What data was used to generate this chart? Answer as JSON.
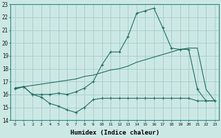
{
  "xlabel": "Humidex (Indice chaleur)",
  "xlim": [
    -0.5,
    23.5
  ],
  "ylim": [
    14,
    23
  ],
  "yticks": [
    14,
    15,
    16,
    17,
    18,
    19,
    20,
    21,
    22,
    23
  ],
  "xticks": [
    0,
    1,
    2,
    3,
    4,
    5,
    6,
    7,
    8,
    9,
    10,
    11,
    12,
    13,
    14,
    15,
    16,
    17,
    18,
    19,
    20,
    21,
    22,
    23
  ],
  "bg_color": "#cce8e5",
  "grid_color": "#aacfcc",
  "line_color": "#1e6e65",
  "line1_x": [
    0,
    1,
    2,
    3,
    4,
    5,
    6,
    7,
    8,
    9,
    10,
    11,
    12,
    13,
    14,
    15,
    16,
    17,
    18,
    19,
    20,
    21,
    22,
    23
  ],
  "line1_y": [
    16.5,
    16.6,
    16.0,
    15.8,
    15.3,
    15.1,
    14.8,
    14.6,
    15.0,
    15.6,
    15.7,
    15.7,
    15.7,
    15.7,
    15.7,
    15.7,
    15.7,
    15.7,
    15.7,
    15.7,
    15.7,
    15.5,
    15.5,
    15.5
  ],
  "line2_x": [
    0,
    1,
    2,
    3,
    4,
    5,
    6,
    7,
    8,
    9,
    10,
    11,
    12,
    13,
    14,
    15,
    16,
    17,
    18,
    19,
    20,
    21,
    22,
    23
  ],
  "line2_y": [
    16.5,
    16.6,
    16.0,
    16.0,
    16.0,
    16.1,
    16.0,
    16.2,
    16.5,
    17.0,
    18.3,
    19.3,
    19.3,
    20.5,
    22.3,
    22.5,
    22.7,
    21.2,
    19.6,
    19.5,
    19.5,
    16.4,
    15.5,
    15.5
  ],
  "line3_x": [
    0,
    1,
    2,
    3,
    4,
    5,
    6,
    7,
    8,
    9,
    10,
    11,
    12,
    13,
    14,
    15,
    16,
    17,
    18,
    19,
    20,
    21,
    22,
    23
  ],
  "line3_y": [
    16.4,
    16.6,
    16.7,
    16.8,
    16.9,
    17.0,
    17.1,
    17.2,
    17.4,
    17.5,
    17.7,
    17.9,
    18.0,
    18.2,
    18.5,
    18.7,
    18.9,
    19.1,
    19.3,
    19.5,
    19.6,
    19.6,
    16.4,
    15.5
  ]
}
